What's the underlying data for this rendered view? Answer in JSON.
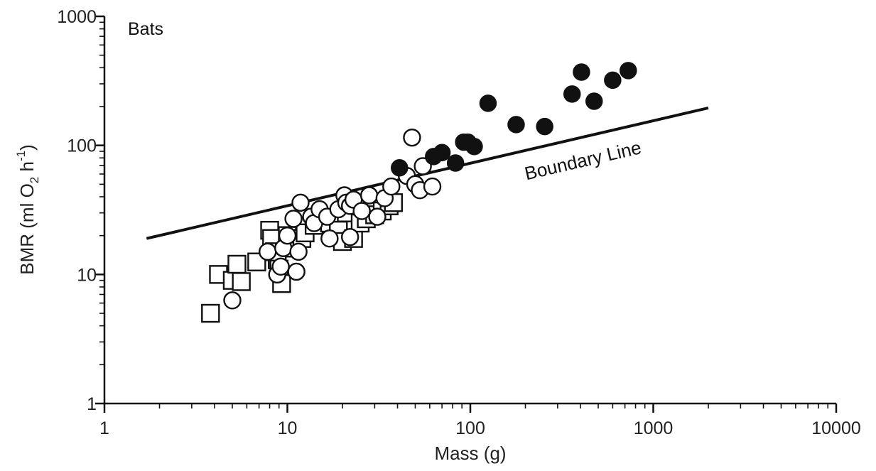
{
  "chart_data": {
    "type": "scatter",
    "title": "",
    "panel_label": "Bats",
    "xlabel": "Mass (g)",
    "ylabel": {
      "prefix": "BMR (ml O",
      "sub": "2",
      "mid": " h",
      "sup": "-1",
      "suffix": ")"
    },
    "x_scale": "log",
    "y_scale": "log",
    "xlim": [
      1,
      10000
    ],
    "ylim": [
      1,
      1000
    ],
    "x_ticks": [
      1,
      10,
      100,
      1000,
      10000
    ],
    "x_tick_labels": [
      "1",
      "10",
      "100",
      "1000",
      "10000"
    ],
    "y_ticks": [
      1,
      10,
      100,
      1000
    ],
    "y_tick_labels": [
      "1",
      "10",
      "100",
      "1000"
    ],
    "grid": false,
    "legend": "none",
    "boundary_line": {
      "label": "Boundary Line",
      "points": [
        [
          1.7,
          19
        ],
        [
          2000,
          195
        ]
      ]
    },
    "series": [
      {
        "marker": "open-square",
        "points": [
          [
            3.8,
            5
          ],
          [
            4.2,
            10
          ],
          [
            5.0,
            9
          ],
          [
            5.3,
            12
          ],
          [
            5.6,
            8.8
          ],
          [
            6.8,
            12.5
          ],
          [
            8.0,
            22
          ],
          [
            8.2,
            19
          ],
          [
            8.5,
            15
          ],
          [
            8.8,
            13
          ],
          [
            9.0,
            11
          ],
          [
            9.3,
            8.5
          ],
          [
            10.0,
            20
          ],
          [
            11.0,
            16
          ],
          [
            12.0,
            19
          ],
          [
            12.5,
            21
          ],
          [
            14.0,
            24
          ],
          [
            15.0,
            27
          ],
          [
            17.0,
            25
          ],
          [
            19.0,
            22
          ],
          [
            20.0,
            18
          ],
          [
            21.0,
            30
          ],
          [
            23.0,
            19
          ],
          [
            25.0,
            25
          ],
          [
            27.0,
            27
          ],
          [
            30.0,
            29
          ],
          [
            33.0,
            31
          ],
          [
            36.0,
            34
          ],
          [
            38.0,
            36
          ]
        ]
      },
      {
        "marker": "open-circle",
        "points": [
          [
            5.0,
            6.3
          ],
          [
            7.8,
            15
          ],
          [
            8.8,
            10
          ],
          [
            9.2,
            11.5
          ],
          [
            9.5,
            16
          ],
          [
            10.0,
            20
          ],
          [
            10.8,
            27
          ],
          [
            11.2,
            10.5
          ],
          [
            11.5,
            15
          ],
          [
            11.8,
            36
          ],
          [
            13.5,
            28
          ],
          [
            14.0,
            25
          ],
          [
            15.0,
            32
          ],
          [
            16.5,
            28
          ],
          [
            17.0,
            19
          ],
          [
            19.0,
            32
          ],
          [
            20.5,
            41
          ],
          [
            21.0,
            36
          ],
          [
            22.0,
            34
          ],
          [
            22.0,
            19.5
          ],
          [
            23.0,
            38
          ],
          [
            25.5,
            31
          ],
          [
            28.0,
            41
          ],
          [
            31.0,
            28
          ],
          [
            34.0,
            39
          ],
          [
            37.0,
            48
          ],
          [
            45.0,
            58
          ],
          [
            48.0,
            115
          ],
          [
            50.0,
            50
          ],
          [
            53.0,
            45
          ],
          [
            55.0,
            69
          ],
          [
            62.0,
            48
          ]
        ]
      },
      {
        "marker": "filled-circle",
        "points": [
          [
            41.0,
            67
          ],
          [
            63.0,
            82
          ],
          [
            70.0,
            88
          ],
          [
            83.0,
            73
          ],
          [
            92.0,
            106
          ],
          [
            97.0,
            106
          ],
          [
            105.0,
            98
          ],
          [
            125.0,
            212
          ],
          [
            178.0,
            145
          ],
          [
            255.0,
            140
          ],
          [
            360.0,
            250
          ],
          [
            405.0,
            370
          ],
          [
            475.0,
            220
          ],
          [
            600.0,
            320
          ],
          [
            730.0,
            380
          ]
        ]
      }
    ]
  }
}
